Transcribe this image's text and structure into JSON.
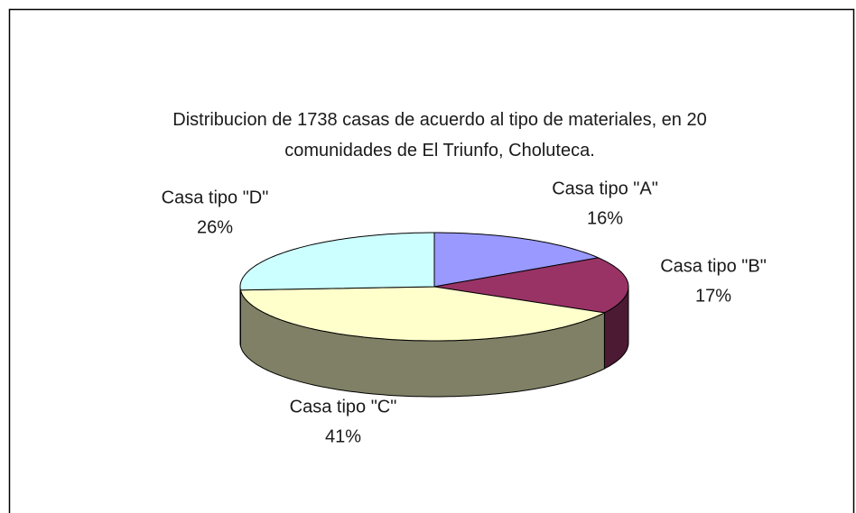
{
  "chart_data": {
    "type": "pie",
    "title": "Distribucion de 1738 casas de acuerdo al tipo de materiales, en 20 comunidades de El Triunfo, Choluteca.",
    "categories": [
      "Casa tipo \"A\"",
      "Casa tipo \"B\"",
      "Casa tipo \"C\"",
      "Casa tipo \"D\""
    ],
    "values": [
      16,
      17,
      41,
      26
    ],
    "value_labels": [
      "16%",
      "17%",
      "41%",
      "26%"
    ],
    "colors": [
      "#9999ff",
      "#993366",
      "#ffffcc",
      "#ccffff"
    ]
  }
}
